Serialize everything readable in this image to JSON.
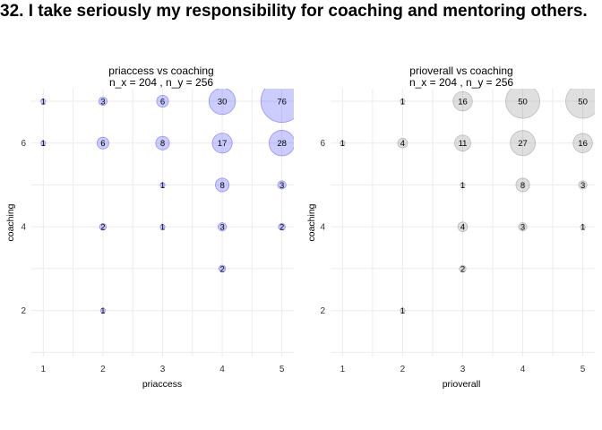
{
  "title": "32. I take seriously my responsibility for coaching and mentoring others.",
  "chart_data": [
    {
      "type": "scatter",
      "subtype": "bubble",
      "title": "priaccess vs coaching",
      "subtitle": "n_x = 204 , n_y = 256",
      "xlabel": "priaccess",
      "ylabel": "coaching",
      "xticks": [
        1,
        2,
        3,
        4,
        5
      ],
      "yticks": [
        2,
        4,
        6
      ],
      "xlim": [
        0.8,
        5.2
      ],
      "ylim": [
        0.9,
        7.3
      ],
      "grid": true,
      "color": "#3333ff",
      "points": [
        {
          "x": 1,
          "y": 7,
          "n": 1
        },
        {
          "x": 2,
          "y": 7,
          "n": 3
        },
        {
          "x": 3,
          "y": 7,
          "n": 6
        },
        {
          "x": 4,
          "y": 7,
          "n": 30
        },
        {
          "x": 5,
          "y": 7,
          "n": 76
        },
        {
          "x": 1,
          "y": 6,
          "n": 1
        },
        {
          "x": 2,
          "y": 6,
          "n": 6
        },
        {
          "x": 3,
          "y": 6,
          "n": 8
        },
        {
          "x": 4,
          "y": 6,
          "n": 17
        },
        {
          "x": 5,
          "y": 6,
          "n": 28
        },
        {
          "x": 3,
          "y": 5,
          "n": 1
        },
        {
          "x": 4,
          "y": 5,
          "n": 8
        },
        {
          "x": 5,
          "y": 5,
          "n": 3
        },
        {
          "x": 2,
          "y": 4,
          "n": 2
        },
        {
          "x": 3,
          "y": 4,
          "n": 1
        },
        {
          "x": 4,
          "y": 4,
          "n": 3
        },
        {
          "x": 5,
          "y": 4,
          "n": 2
        },
        {
          "x": 4,
          "y": 3,
          "n": 2
        },
        {
          "x": 2,
          "y": 2,
          "n": 1
        }
      ]
    },
    {
      "type": "scatter",
      "subtype": "bubble",
      "title": "prioverall vs coaching",
      "subtitle": "n_x = 204 , n_y = 256",
      "xlabel": "prioverall",
      "ylabel": "coaching",
      "xticks": [
        1,
        2,
        3,
        4,
        5
      ],
      "yticks": [
        2,
        4,
        6
      ],
      "xlim": [
        0.8,
        5.2
      ],
      "ylim": [
        0.9,
        7.3
      ],
      "grid": true,
      "color": "#7f7f7f",
      "points": [
        {
          "x": 2,
          "y": 7,
          "n": 1
        },
        {
          "x": 3,
          "y": 7,
          "n": 16
        },
        {
          "x": 4,
          "y": 7,
          "n": 50
        },
        {
          "x": 5,
          "y": 7,
          "n": 50
        },
        {
          "x": 1,
          "y": 6,
          "n": 1
        },
        {
          "x": 2,
          "y": 6,
          "n": 4
        },
        {
          "x": 3,
          "y": 6,
          "n": 11
        },
        {
          "x": 4,
          "y": 6,
          "n": 27
        },
        {
          "x": 5,
          "y": 6,
          "n": 16
        },
        {
          "x": 3,
          "y": 5,
          "n": 1
        },
        {
          "x": 4,
          "y": 5,
          "n": 8
        },
        {
          "x": 5,
          "y": 5,
          "n": 3
        },
        {
          "x": 3,
          "y": 4,
          "n": 4
        },
        {
          "x": 4,
          "y": 4,
          "n": 3
        },
        {
          "x": 5,
          "y": 4,
          "n": 1
        },
        {
          "x": 3,
          "y": 3,
          "n": 2
        },
        {
          "x": 2,
          "y": 2,
          "n": 1
        }
      ]
    }
  ]
}
